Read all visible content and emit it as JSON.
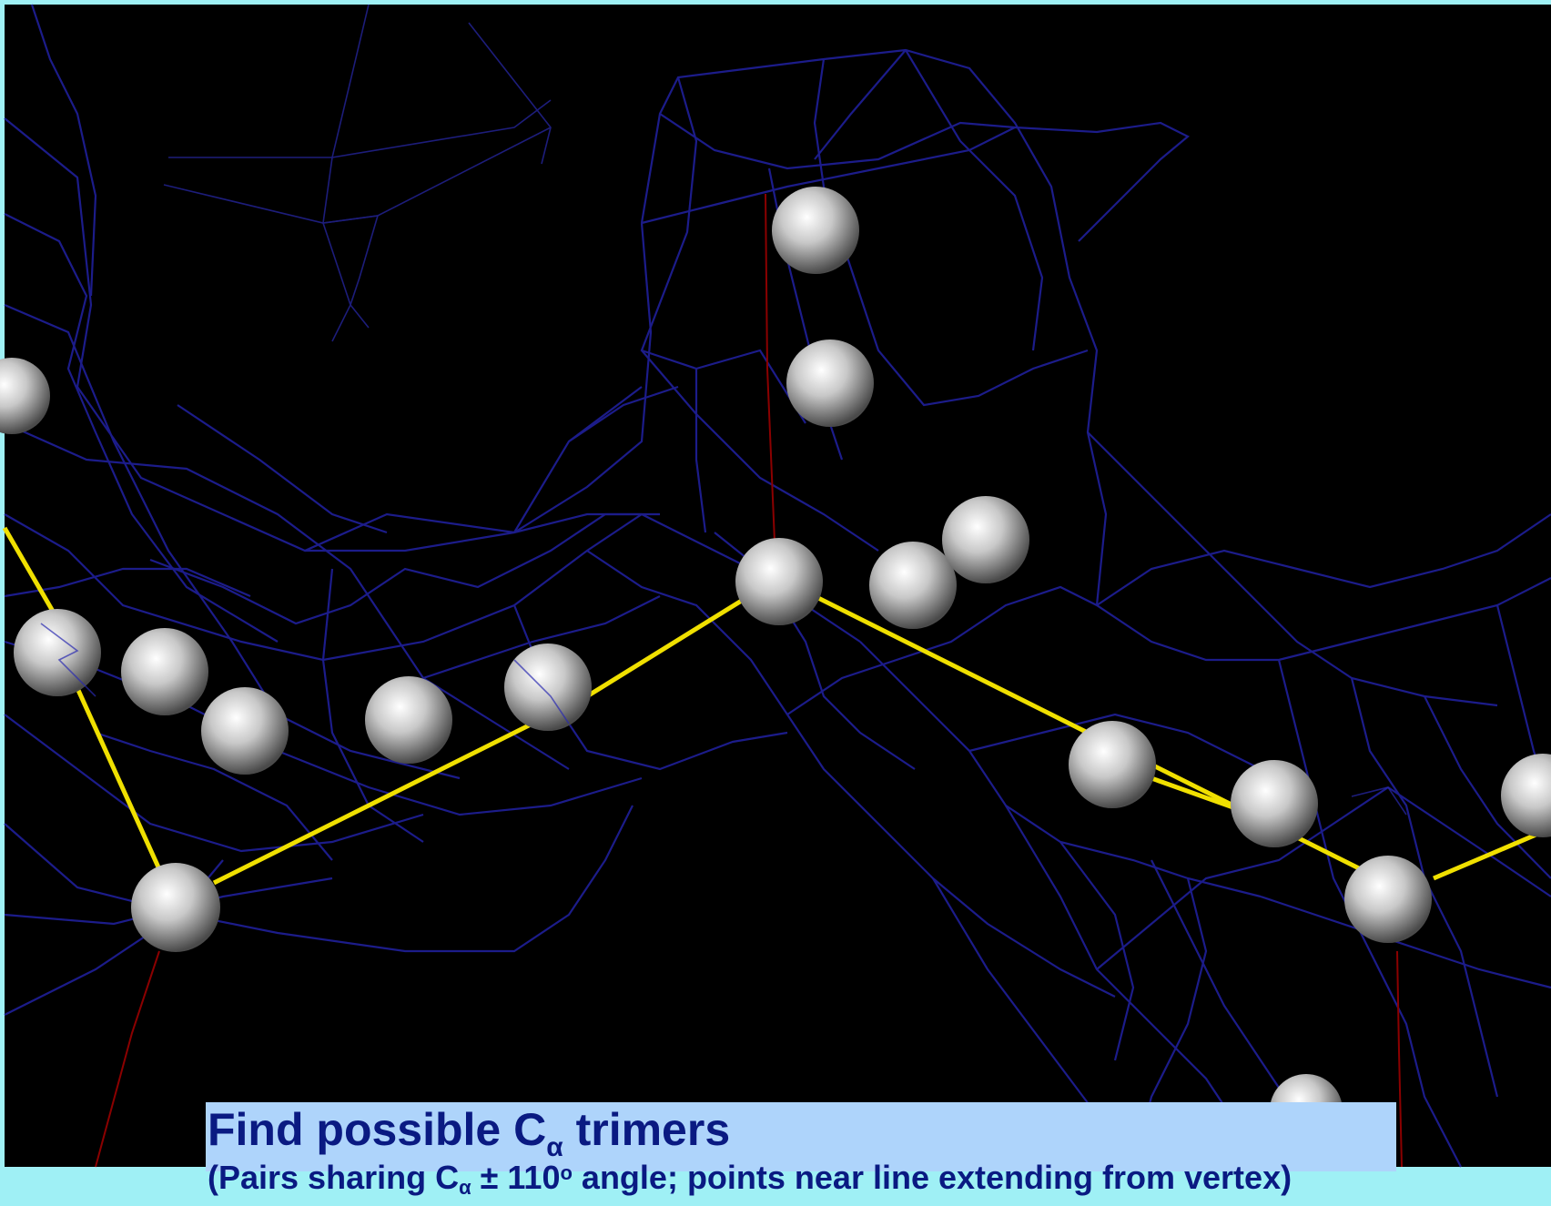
{
  "caption": {
    "title_prefix": "Find possible C",
    "title_subscript": "α",
    "title_suffix": " trimers",
    "subtitle_prefix": "(Pairs sharing C",
    "subtitle_subscript": "α",
    "subtitle_middle": " ± 110",
    "subtitle_superscript": "o",
    "subtitle_suffix": " angle; points near line extending from vertex)"
  },
  "colors": {
    "frame": "#9ff0f5",
    "background": "#000000",
    "mesh": "#1c1c8a",
    "backbone": "#f0e000",
    "probe": "#8b0000",
    "atom": "#d8d8d8",
    "caption_bg": "#aed4fb",
    "caption_text": "#0a1a82"
  }
}
